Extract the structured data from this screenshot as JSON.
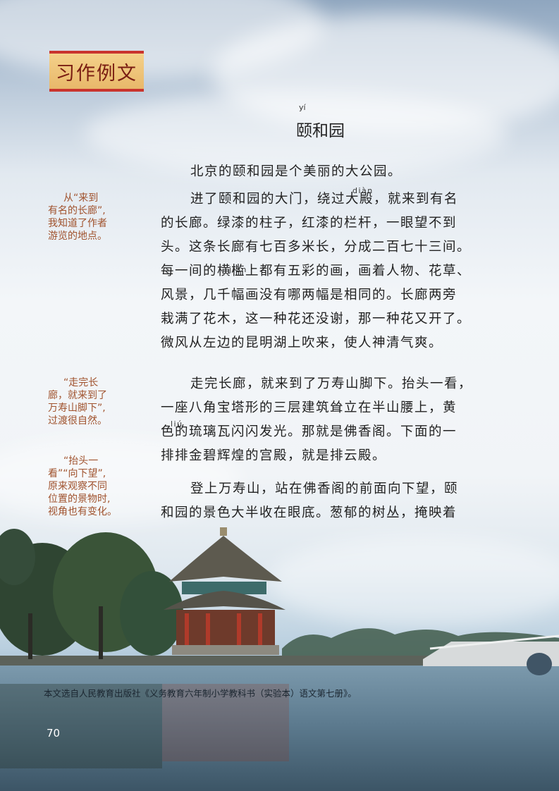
{
  "badge": {
    "label": "习作例文"
  },
  "title": {
    "text": "颐和园",
    "pinyin": "yí"
  },
  "paragraphs": [
    {
      "lines": [
        "北京的颐和园是个美丽的大公园。"
      ]
    },
    {
      "lines": [
        "进了颐和园的大门，绕过大殿，就来到有名",
        "的长廊。绿漆的柱子，红漆的栏杆，一眼望不到",
        "头。这条长廊有七百多米长，分成二百七十三间。",
        "每一间的横槛上都有五彩的画，画着人物、花草、",
        "风景，几千幅画没有哪两幅是相同的。长廊两旁",
        "栽满了花木，这一种花还没谢，那一种花又开了。",
        "微风从左边的昆明湖上吹来，使人神清气爽。"
      ],
      "pinyin_dian": "diàn",
      "pinyin_jian": "jiàn"
    },
    {
      "lines": [
        "走完长廊，就来到了万寿山脚下。抬头一看，",
        "一座八角宝塔形的三层建筑耸立在半山腰上，黄",
        "色的琉璃瓦闪闪发光。那就是佛香阁。下面的一",
        "排排金碧辉煌的宫殿，就是排云殿。"
      ],
      "pinyin_liu": "liú"
    },
    {
      "lines": [
        "登上万寿山，站在佛香阁的前面向下望，颐",
        "和园的景色大半收在眼底。葱郁的树丛，掩映着"
      ]
    }
  ],
  "annotations": [
    {
      "lines": [
        "从“来到",
        "有名的长廊”,",
        "我知道了作者",
        "游览的地点。"
      ]
    },
    {
      "lines": [
        "“走完长",
        "廊，就来到了",
        "万寿山脚下”,",
        "过渡很自然。"
      ]
    },
    {
      "lines": [
        "“抬头一",
        "看”“向下望”,",
        "原来观察不同",
        "位置的景物时,",
        "视角也有变化。"
      ]
    }
  ],
  "footnote": "本文选自人民教育出版社《义务教育六年制小学教科书（实验本）语文第七册》。",
  "page_number": "70",
  "colors": {
    "annotation": "#a0522d",
    "badge_text": "#7a1d12",
    "badge_border": "#c9342e"
  }
}
